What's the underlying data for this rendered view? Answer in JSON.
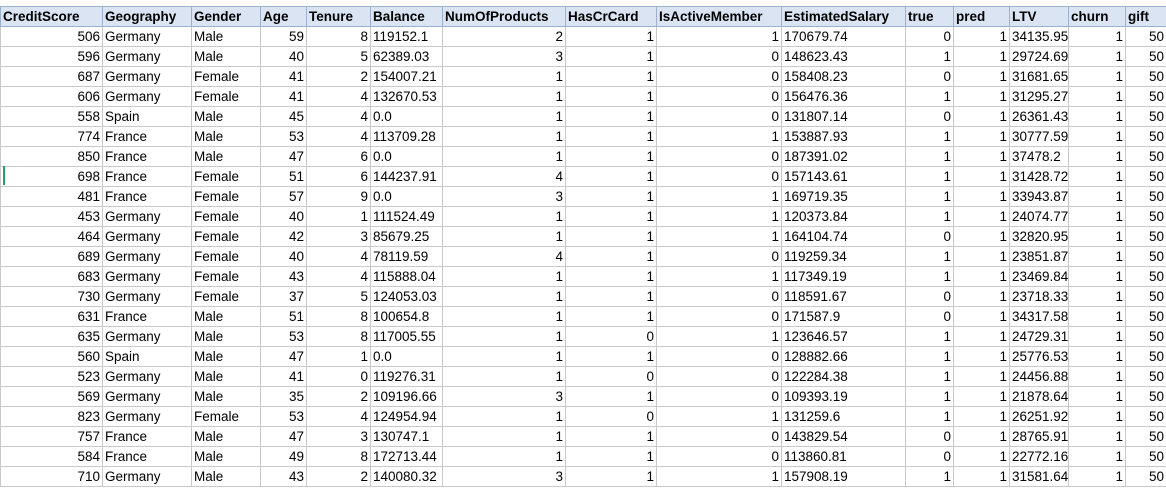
{
  "columns": [
    "CreditScore",
    "Geography",
    "Gender",
    "Age",
    "Tenure",
    "Balance",
    "NumOfProducts",
    "HasCrCard",
    "IsActiveMember",
    "EstimatedSalary",
    "true",
    "pred",
    "LTV",
    "churn",
    "gift"
  ],
  "column_align": [
    "num",
    "txt",
    "txt",
    "num",
    "num",
    "txt",
    "num",
    "num",
    "num",
    "txt",
    "num",
    "num",
    "txt",
    "num",
    "num"
  ],
  "rows": [
    [
      "506",
      "Germany",
      "Male",
      "59",
      "8",
      "119152.1",
      "2",
      "1",
      "1",
      "170679.74",
      "0",
      "1",
      "34135.95",
      "1",
      "50"
    ],
    [
      "596",
      "Germany",
      "Male",
      "40",
      "5",
      "62389.03",
      "3",
      "1",
      "0",
      "148623.43",
      "1",
      "1",
      "29724.69",
      "1",
      "50"
    ],
    [
      "687",
      "Germany",
      "Female",
      "41",
      "2",
      "154007.21",
      "1",
      "1",
      "0",
      "158408.23",
      "0",
      "1",
      "31681.65",
      "1",
      "50"
    ],
    [
      "606",
      "Germany",
      "Female",
      "41",
      "4",
      "132670.53",
      "1",
      "1",
      "0",
      "156476.36",
      "1",
      "1",
      "31295.27",
      "1",
      "50"
    ],
    [
      "558",
      "Spain",
      "Male",
      "45",
      "4",
      "0.0",
      "1",
      "1",
      "0",
      "131807.14",
      "0",
      "1",
      "26361.43",
      "1",
      "50"
    ],
    [
      "774",
      "France",
      "Male",
      "53",
      "4",
      "113709.28",
      "1",
      "1",
      "1",
      "153887.93",
      "1",
      "1",
      "30777.59",
      "1",
      "50"
    ],
    [
      "850",
      "France",
      "Male",
      "47",
      "6",
      "0.0",
      "1",
      "1",
      "0",
      "187391.02",
      "1",
      "1",
      "37478.2",
      "1",
      "50"
    ],
    [
      "698",
      "France",
      "Female",
      "51",
      "6",
      "144237.91",
      "4",
      "1",
      "0",
      "157143.61",
      "1",
      "1",
      "31428.72",
      "1",
      "50"
    ],
    [
      "481",
      "France",
      "Female",
      "57",
      "9",
      "0.0",
      "3",
      "1",
      "1",
      "169719.35",
      "1",
      "1",
      "33943.87",
      "1",
      "50"
    ],
    [
      "453",
      "Germany",
      "Female",
      "40",
      "1",
      "111524.49",
      "1",
      "1",
      "1",
      "120373.84",
      "1",
      "1",
      "24074.77",
      "1",
      "50"
    ],
    [
      "464",
      "Germany",
      "Female",
      "42",
      "3",
      "85679.25",
      "1",
      "1",
      "1",
      "164104.74",
      "0",
      "1",
      "32820.95",
      "1",
      "50"
    ],
    [
      "689",
      "Germany",
      "Female",
      "40",
      "4",
      "78119.59",
      "4",
      "1",
      "0",
      "119259.34",
      "1",
      "1",
      "23851.87",
      "1",
      "50"
    ],
    [
      "683",
      "Germany",
      "Female",
      "43",
      "4",
      "115888.04",
      "1",
      "1",
      "1",
      "117349.19",
      "1",
      "1",
      "23469.84",
      "1",
      "50"
    ],
    [
      "730",
      "Germany",
      "Female",
      "37",
      "5",
      "124053.03",
      "1",
      "1",
      "0",
      "118591.67",
      "0",
      "1",
      "23718.33",
      "1",
      "50"
    ],
    [
      "631",
      "France",
      "Male",
      "51",
      "8",
      "100654.8",
      "1",
      "1",
      "0",
      "171587.9",
      "0",
      "1",
      "34317.58",
      "1",
      "50"
    ],
    [
      "635",
      "Germany",
      "Male",
      "53",
      "8",
      "117005.55",
      "1",
      "0",
      "1",
      "123646.57",
      "1",
      "1",
      "24729.31",
      "1",
      "50"
    ],
    [
      "560",
      "Spain",
      "Male",
      "47",
      "1",
      "0.0",
      "1",
      "1",
      "0",
      "128882.66",
      "1",
      "1",
      "25776.53",
      "1",
      "50"
    ],
    [
      "523",
      "Germany",
      "Male",
      "41",
      "0",
      "119276.31",
      "1",
      "0",
      "0",
      "122284.38",
      "1",
      "1",
      "24456.88",
      "1",
      "50"
    ],
    [
      "569",
      "Germany",
      "Male",
      "35",
      "2",
      "109196.66",
      "3",
      "1",
      "0",
      "109393.19",
      "1",
      "1",
      "21878.64",
      "1",
      "50"
    ],
    [
      "823",
      "Germany",
      "Female",
      "53",
      "4",
      "124954.94",
      "1",
      "0",
      "1",
      "131259.6",
      "1",
      "1",
      "26251.92",
      "1",
      "50"
    ],
    [
      "757",
      "France",
      "Male",
      "47",
      "3",
      "130747.1",
      "1",
      "1",
      "0",
      "143829.54",
      "0",
      "1",
      "28765.91",
      "1",
      "50"
    ],
    [
      "584",
      "France",
      "Male",
      "49",
      "8",
      "172713.44",
      "1",
      "1",
      "0",
      "113860.81",
      "0",
      "1",
      "22772.16",
      "1",
      "50"
    ],
    [
      "710",
      "Germany",
      "Male",
      "43",
      "2",
      "140080.32",
      "3",
      "1",
      "1",
      "157908.19",
      "1",
      "1",
      "31581.64",
      "1",
      "50"
    ]
  ],
  "colors": {
    "header_fill": "#dbe4f3",
    "grid_line": "#c9c9c9",
    "selection_marker": "#21a366"
  }
}
